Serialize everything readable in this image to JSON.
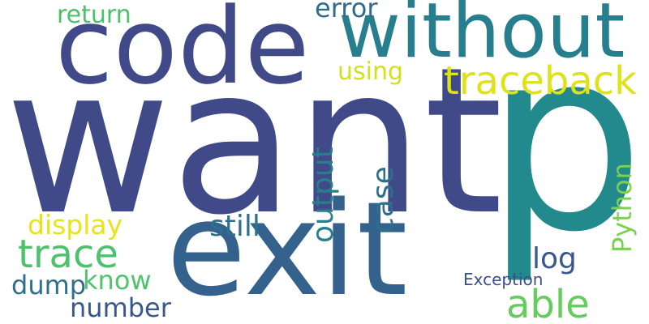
{
  "words": [
    {
      "text": "want",
      "color": "#404a88"
    },
    {
      "text": "p",
      "color": "#228a8d"
    },
    {
      "text": "exit",
      "color": "#34628d"
    },
    {
      "text": "code",
      "color": "#404a88"
    },
    {
      "text": "without",
      "color": "#277f8e"
    },
    {
      "text": "traceback",
      "color": "#dde318"
    },
    {
      "text": "error",
      "color": "#2f6b8e"
    },
    {
      "text": "return",
      "color": "#4bc16b"
    },
    {
      "text": "using",
      "color": "#d1e11c"
    },
    {
      "text": "output",
      "color": "#277f8e"
    },
    {
      "text": "case",
      "color": "#2d708e"
    },
    {
      "text": "Python",
      "color": "#7ad151"
    },
    {
      "text": "display",
      "color": "#e7e419"
    },
    {
      "text": "trace",
      "color": "#4cc26c"
    },
    {
      "text": "still",
      "color": "#2d718e"
    },
    {
      "text": "dump",
      "color": "#2e6f8e"
    },
    {
      "text": "know",
      "color": "#4fc46a"
    },
    {
      "text": "log",
      "color": "#38588c"
    },
    {
      "text": "number",
      "color": "#38588c"
    },
    {
      "text": "able",
      "color": "#66cc5d"
    },
    {
      "text": "Exception",
      "color": "#3c4f8a"
    }
  ]
}
